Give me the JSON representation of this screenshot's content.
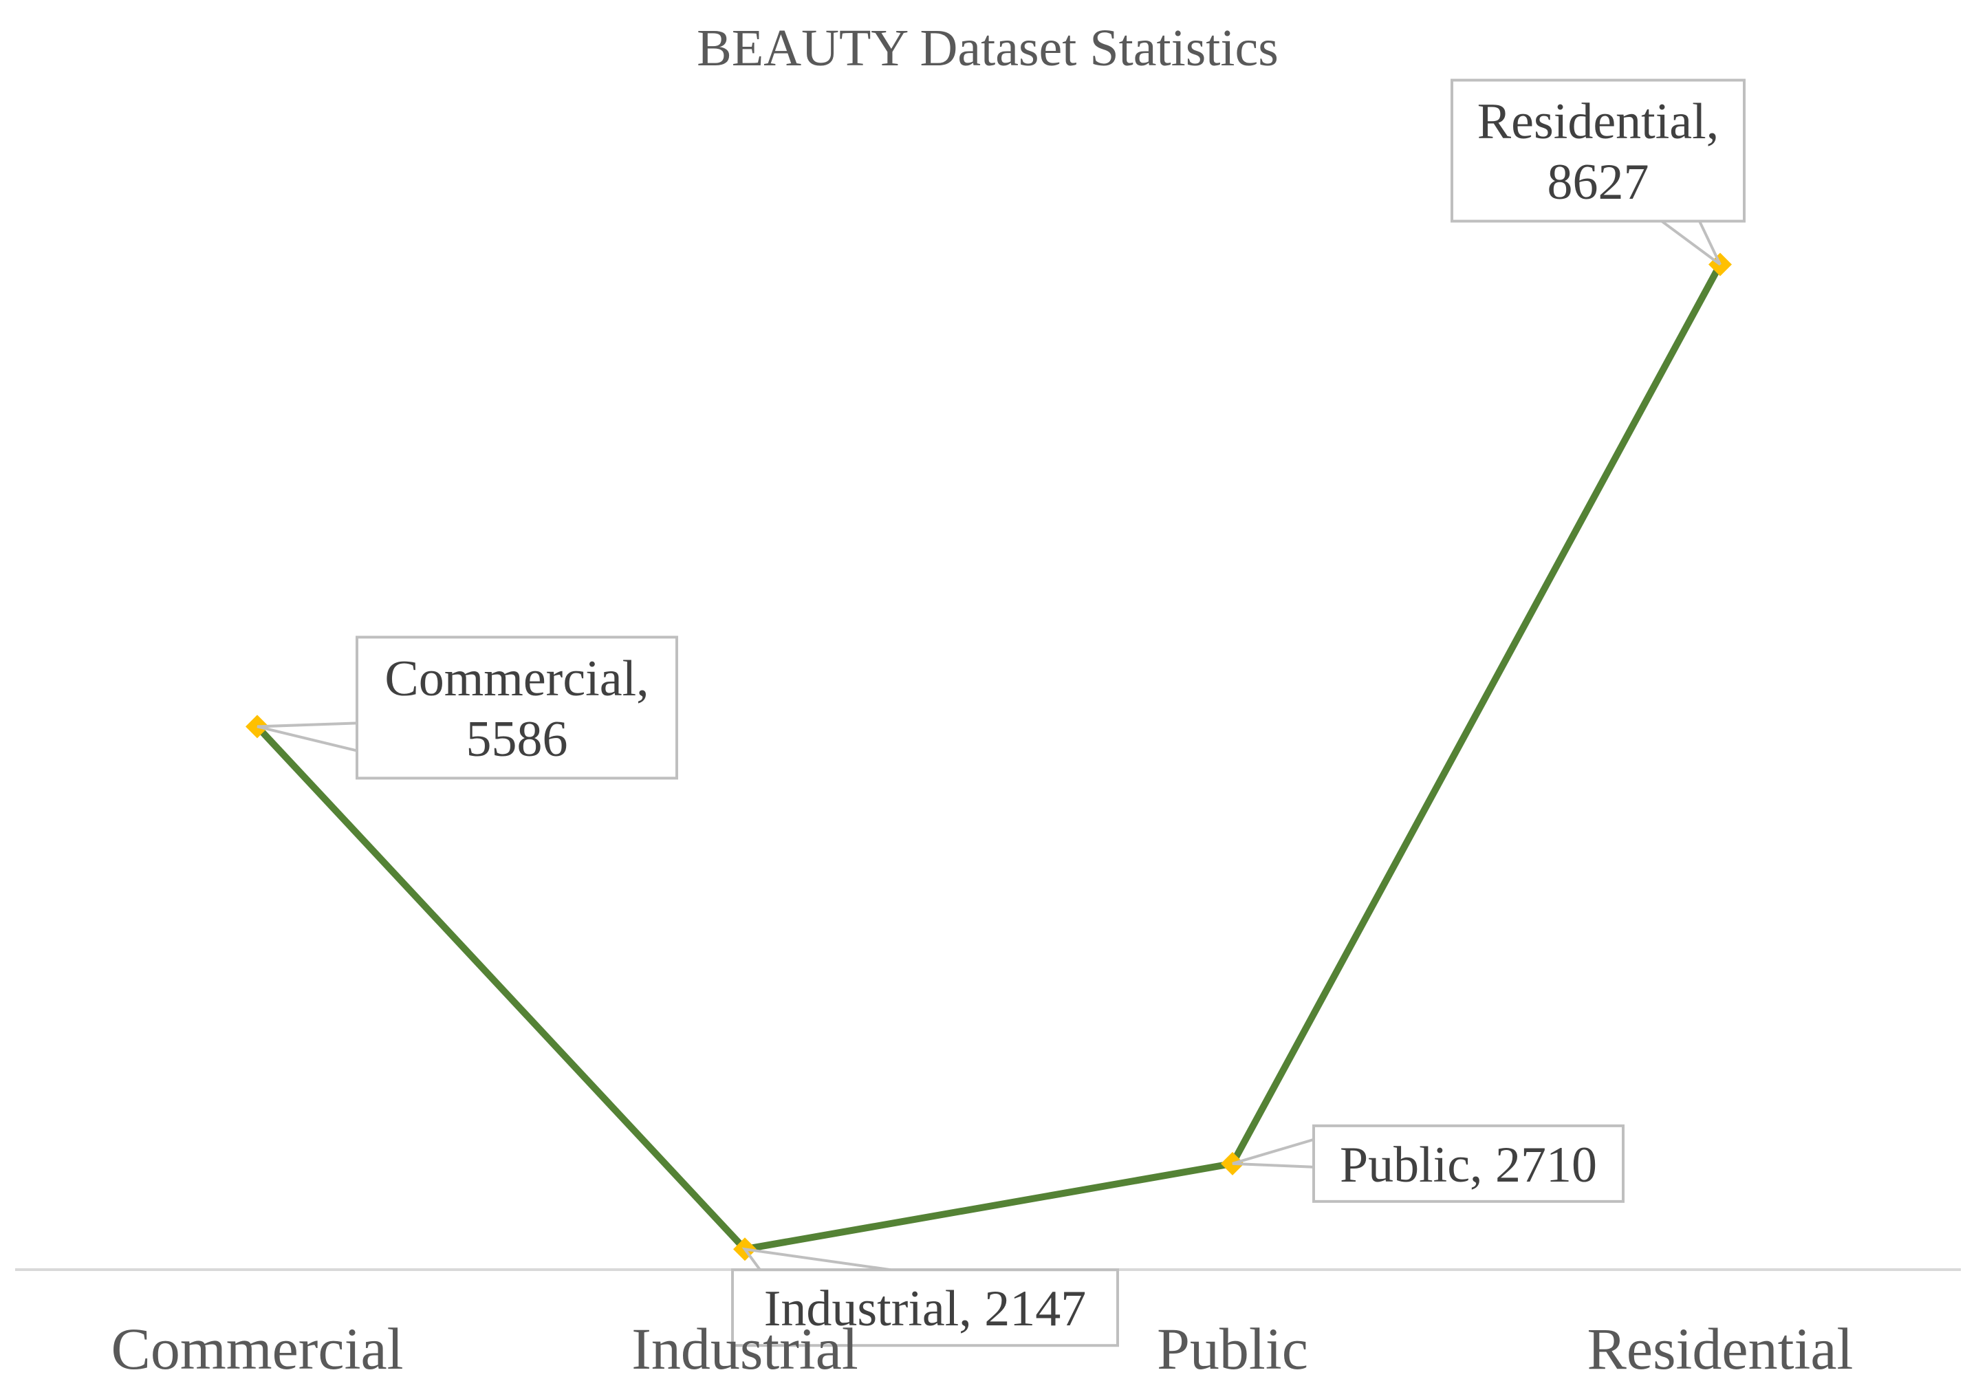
{
  "chart_data": {
    "type": "line",
    "title": "BEAUTY Dataset Statistics",
    "categories": [
      "Commercial",
      "Industrial",
      "Public",
      "Residential"
    ],
    "values": [
      5586,
      2147,
      2710,
      8627
    ],
    "data_labels": [
      [
        "Commercial,",
        "5586"
      ],
      [
        "Industrial, 2147"
      ],
      [
        "Public, 2710"
      ],
      [
        "Residential,",
        "8627"
      ]
    ],
    "xlabel": "",
    "ylabel": "",
    "ylim": [
      0,
      10000
    ],
    "grid": false,
    "legend": "none",
    "line_color": "#548235",
    "marker_color": "#FFC000",
    "marker": "diamond"
  }
}
